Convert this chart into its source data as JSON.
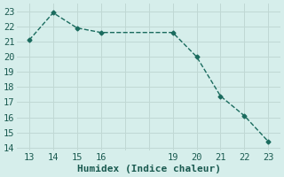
{
  "x": [
    13,
    14,
    15,
    16,
    19,
    20,
    21,
    22,
    23
  ],
  "y": [
    21.1,
    22.9,
    21.9,
    21.6,
    21.6,
    20.0,
    17.4,
    16.1,
    14.4
  ],
  "line_color": "#1a6b5e",
  "marker": "D",
  "marker_size": 2.5,
  "xlabel": "Humidex (Indice chaleur)",
  "xlim": [
    12.5,
    23.5
  ],
  "ylim": [
    13.8,
    23.5
  ],
  "xticks": [
    13,
    14,
    15,
    16,
    19,
    20,
    21,
    22,
    23
  ],
  "yticks": [
    14,
    15,
    16,
    17,
    18,
    19,
    20,
    21,
    22,
    23
  ],
  "grid_xticks": [
    13,
    14,
    15,
    16,
    17,
    18,
    19,
    20,
    21,
    22,
    23
  ],
  "bg_color": "#d6eeeb",
  "grid_color": "#c0d8d4",
  "font_color": "#1a5a50",
  "font_size": 7.5
}
